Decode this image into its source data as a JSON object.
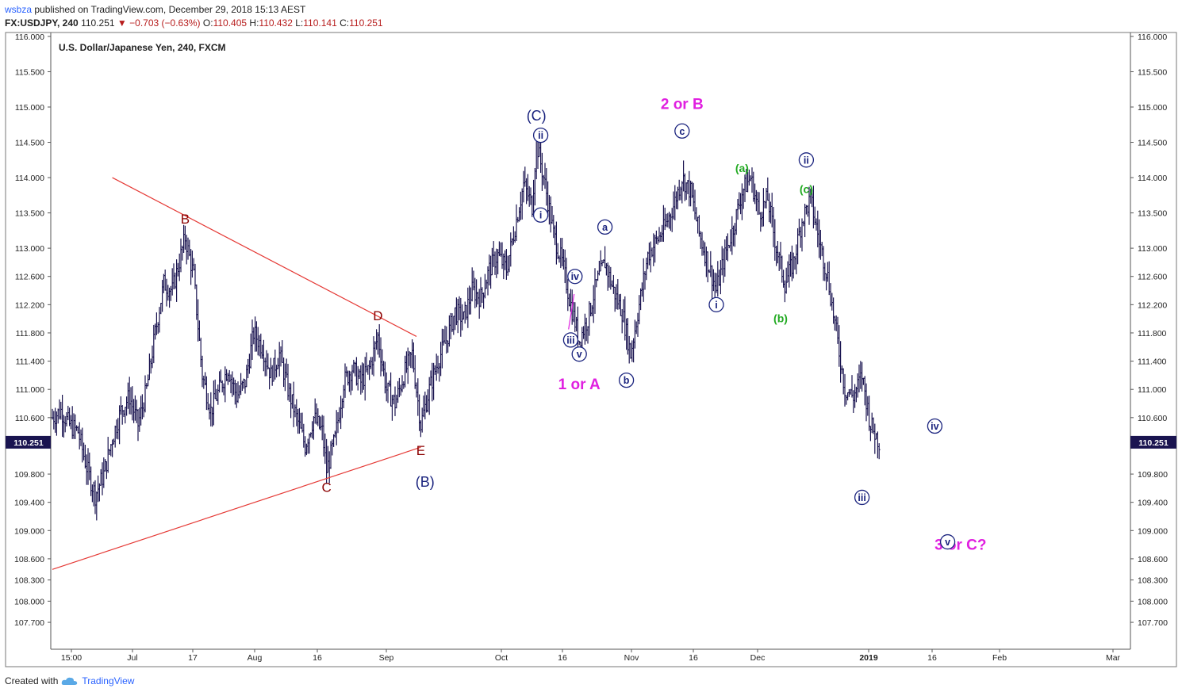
{
  "header": {
    "publisher": "wsbza",
    "published_text": "published on TradingView.com, December 29, 2018 15:13 AEST",
    "symbol": "FX:USDJPY, 240",
    "last": "110.251",
    "arrow": "▼",
    "change": "−0.703 (−0.63%)",
    "o_label": "O:",
    "o_val": "110.405",
    "h_label": "H:",
    "h_val": "110.432",
    "l_label": "L:",
    "l_val": "110.141",
    "c_label": "C:",
    "c_val": "110.251"
  },
  "chart_title": "U.S. Dollar/Japanese Yen, 240, FXCM",
  "footer": {
    "created_with": "Created with",
    "brand": "TradingView"
  },
  "colors": {
    "candle": "#1a1450",
    "trendline": "#e53935",
    "label_dark_red": "#8b0000",
    "label_navy": "#1a237e",
    "label_magenta": "#e020e0",
    "label_green": "#22aa22",
    "price_tag_bg": "#1a1450"
  },
  "chart_data": {
    "type": "line",
    "subtype": "ohlc-bars",
    "title": "U.S. Dollar/Japanese Yen, 240, FXCM",
    "y_axis": {
      "ticks": [
        "116.000",
        "115.500",
        "115.000",
        "114.500",
        "114.000",
        "113.500",
        "113.000",
        "112.600",
        "112.200",
        "111.800",
        "111.400",
        "111.000",
        "110.600",
        "109.800",
        "109.400",
        "109.000",
        "108.600",
        "108.300",
        "108.000",
        "107.700"
      ],
      "range": [
        107.55,
        116.1
      ],
      "current_price": "110.251"
    },
    "x_axis": {
      "ticks": [
        "15:00",
        "Jul",
        "17",
        "Aug",
        "16",
        "Sep",
        "Oct",
        "16",
        "Nov",
        "16",
        "Dec",
        "2019",
        "16",
        "Feb",
        "Mar"
      ]
    },
    "price_path": [
      [
        0,
        110.6
      ],
      [
        2,
        110.7
      ],
      [
        4,
        110.5
      ],
      [
        6,
        110.4
      ],
      [
        8,
        109.9
      ],
      [
        10,
        109.5
      ],
      [
        12,
        109.8
      ],
      [
        14,
        110.3
      ],
      [
        16,
        110.7
      ],
      [
        18,
        110.9
      ],
      [
        20,
        110.5
      ],
      [
        22,
        111.0
      ],
      [
        24,
        111.8
      ],
      [
        26,
        112.5
      ],
      [
        28,
        112.4
      ],
      [
        30,
        112.9
      ],
      [
        31,
        113.15
      ],
      [
        33,
        112.6
      ],
      [
        35,
        111.2
      ],
      [
        37,
        110.7
      ],
      [
        39,
        111.0
      ],
      [
        41,
        111.3
      ],
      [
        43,
        110.9
      ],
      [
        45,
        111.1
      ],
      [
        47,
        111.8
      ],
      [
        49,
        111.6
      ],
      [
        51,
        111.2
      ],
      [
        53,
        111.5
      ],
      [
        55,
        111.0
      ],
      [
        57,
        110.6
      ],
      [
        59,
        110.2
      ],
      [
        61,
        110.6
      ],
      [
        63,
        110.4
      ],
      [
        64,
        109.85
      ],
      [
        66,
        110.3
      ],
      [
        68,
        111.1
      ],
      [
        70,
        111.3
      ],
      [
        72,
        111.1
      ],
      [
        74,
        111.3
      ],
      [
        76,
        111.75
      ],
      [
        78,
        111.0
      ],
      [
        80,
        110.8
      ],
      [
        82,
        111.2
      ],
      [
        84,
        111.5
      ],
      [
        86,
        110.5
      ],
      [
        88,
        111.0
      ],
      [
        90,
        111.4
      ],
      [
        92,
        111.7
      ],
      [
        94,
        112.1
      ],
      [
        96,
        112.0
      ],
      [
        98,
        112.4
      ],
      [
        100,
        112.3
      ],
      [
        102,
        112.7
      ],
      [
        104,
        112.9
      ],
      [
        106,
        112.7
      ],
      [
        108,
        113.3
      ],
      [
        110,
        113.9
      ],
      [
        112,
        113.6
      ],
      [
        113,
        114.5
      ],
      [
        115,
        113.9
      ],
      [
        117,
        113.2
      ],
      [
        119,
        112.8
      ],
      [
        121,
        112.2
      ],
      [
        123,
        111.7
      ],
      [
        125,
        112.0
      ],
      [
        127,
        112.5
      ],
      [
        129,
        112.8
      ],
      [
        131,
        112.4
      ],
      [
        133,
        112.1
      ],
      [
        135,
        111.5
      ],
      [
        137,
        112.2
      ],
      [
        139,
        112.9
      ],
      [
        141,
        113.1
      ],
      [
        143,
        113.3
      ],
      [
        145,
        113.6
      ],
      [
        147,
        114.0
      ],
      [
        149,
        113.8
      ],
      [
        151,
        113.2
      ],
      [
        153,
        112.8
      ],
      [
        155,
        112.4
      ],
      [
        157,
        112.9
      ],
      [
        159,
        113.3
      ],
      [
        161,
        113.8
      ],
      [
        163,
        114.0
      ],
      [
        165,
        113.5
      ],
      [
        167,
        113.7
      ],
      [
        169,
        113.0
      ],
      [
        171,
        112.5
      ],
      [
        173,
        112.8
      ],
      [
        175,
        113.4
      ],
      [
        177,
        113.7
      ],
      [
        179,
        113.1
      ],
      [
        181,
        112.6
      ],
      [
        183,
        111.8
      ],
      [
        185,
        111.0
      ],
      [
        187,
        110.9
      ],
      [
        189,
        111.2
      ],
      [
        191,
        110.5
      ],
      [
        193,
        110.25
      ]
    ],
    "wave_labels": [
      {
        "text": "B",
        "group": "triangle",
        "bar": 31,
        "price": 113.35
      },
      {
        "text": "C",
        "group": "triangle",
        "bar": 64,
        "price": 109.55
      },
      {
        "text": "D",
        "group": "triangle",
        "bar": 76,
        "price": 111.98
      },
      {
        "text": "E",
        "group": "triangle",
        "bar": 86,
        "price": 110.07
      },
      {
        "text": "(C)",
        "group": "intermediate",
        "bar": 113,
        "price": 114.81
      },
      {
        "text": "(B)",
        "group": "intermediate",
        "bar": 87,
        "price": 109.62
      },
      {
        "text": "1 or A",
        "group": "primary",
        "bar": 123,
        "price": 111.0
      },
      {
        "text": "2 or B",
        "group": "primary",
        "bar": 147,
        "price": 114.97
      },
      {
        "text": "3 or C?",
        "group": "primary",
        "bar": 212,
        "price": 108.73
      },
      {
        "text": "(a)",
        "group": "minor_green",
        "bar": 161,
        "price": 114.08
      },
      {
        "text": "(b)",
        "group": "minor_green",
        "bar": 170,
        "price": 111.95
      },
      {
        "text": "(c)",
        "group": "minor_green",
        "bar": 176,
        "price": 113.78
      }
    ],
    "circled_labels": [
      {
        "text": "ii",
        "bar": 114,
        "price": 114.6
      },
      {
        "text": "i",
        "bar": 114,
        "price": 113.47
      },
      {
        "text": "iv",
        "bar": 122,
        "price": 112.6
      },
      {
        "text": "iii",
        "bar": 121,
        "price": 111.7
      },
      {
        "text": "v",
        "bar": 123,
        "price": 111.5
      },
      {
        "text": "a",
        "bar": 129,
        "price": 113.3
      },
      {
        "text": "b",
        "bar": 134,
        "price": 111.13
      },
      {
        "text": "c",
        "bar": 147,
        "price": 114.66
      },
      {
        "text": "i",
        "bar": 155,
        "price": 112.2
      },
      {
        "text": "ii",
        "bar": 176,
        "price": 114.25
      },
      {
        "text": "iii",
        "bar": 189,
        "price": 109.47
      },
      {
        "text": "iv",
        "bar": 206,
        "price": 110.48
      },
      {
        "text": "v",
        "bar": 209,
        "price": 108.84
      }
    ],
    "trendlines": [
      {
        "from": [
          14,
          114.0
        ],
        "to": [
          85,
          111.75
        ]
      },
      {
        "from": [
          0,
          108.45
        ],
        "to": [
          86,
          110.18
        ]
      }
    ],
    "grid": false
  }
}
